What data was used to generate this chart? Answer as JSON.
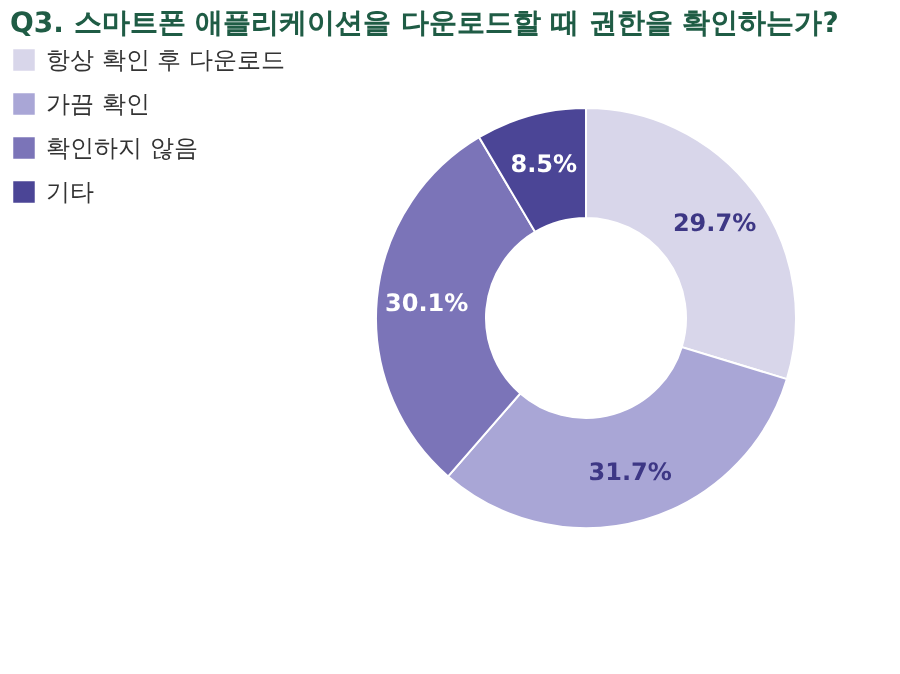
{
  "chart_data": {
    "type": "donut",
    "title": "Q3. 스마트폰 애플리케이션을 다운로드할 때 권한을 확인하는가?",
    "categories": [
      "항상 확인 후 다운로드",
      "가끔 확인",
      "확인하지 않음",
      "기타"
    ],
    "values": [
      29.7,
      31.7,
      30.1,
      8.5
    ],
    "colors": [
      "#d8d6ea",
      "#a9a6d6",
      "#7b74b8",
      "#4b4596"
    ],
    "value_labels": [
      "29.7%",
      "31.7%",
      "30.1%",
      "8.5%"
    ],
    "legend": "left"
  }
}
